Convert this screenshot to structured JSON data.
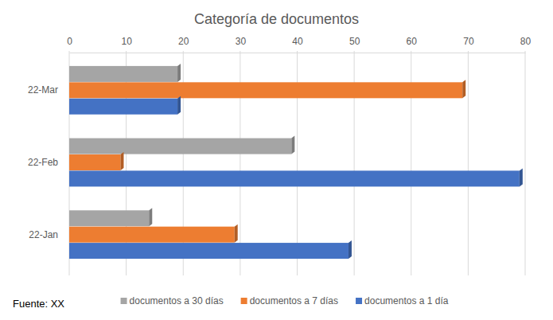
{
  "chart_data": {
    "type": "bar",
    "title": "Categoría de documentos",
    "orientation": "horizontal",
    "categories": [
      "22-Jan",
      "22-Feb",
      "22-Mar"
    ],
    "series": [
      {
        "name": "documentos a 30 días",
        "color": "#a5a5a5",
        "values": [
          14,
          39,
          19
        ]
      },
      {
        "name": "documentos a 7 días",
        "color": "#ed7d31",
        "values": [
          29,
          9,
          69
        ]
      },
      {
        "name": "documentos a 1 día",
        "color": "#4472c4",
        "values": [
          49,
          79,
          19
        ]
      }
    ],
    "xlim": [
      0,
      80
    ],
    "xticks": [
      0,
      10,
      20,
      30,
      40,
      50,
      60,
      70,
      80
    ],
    "grid": true,
    "legend": "bottom",
    "annotations": [
      "Fuente: XX"
    ]
  }
}
